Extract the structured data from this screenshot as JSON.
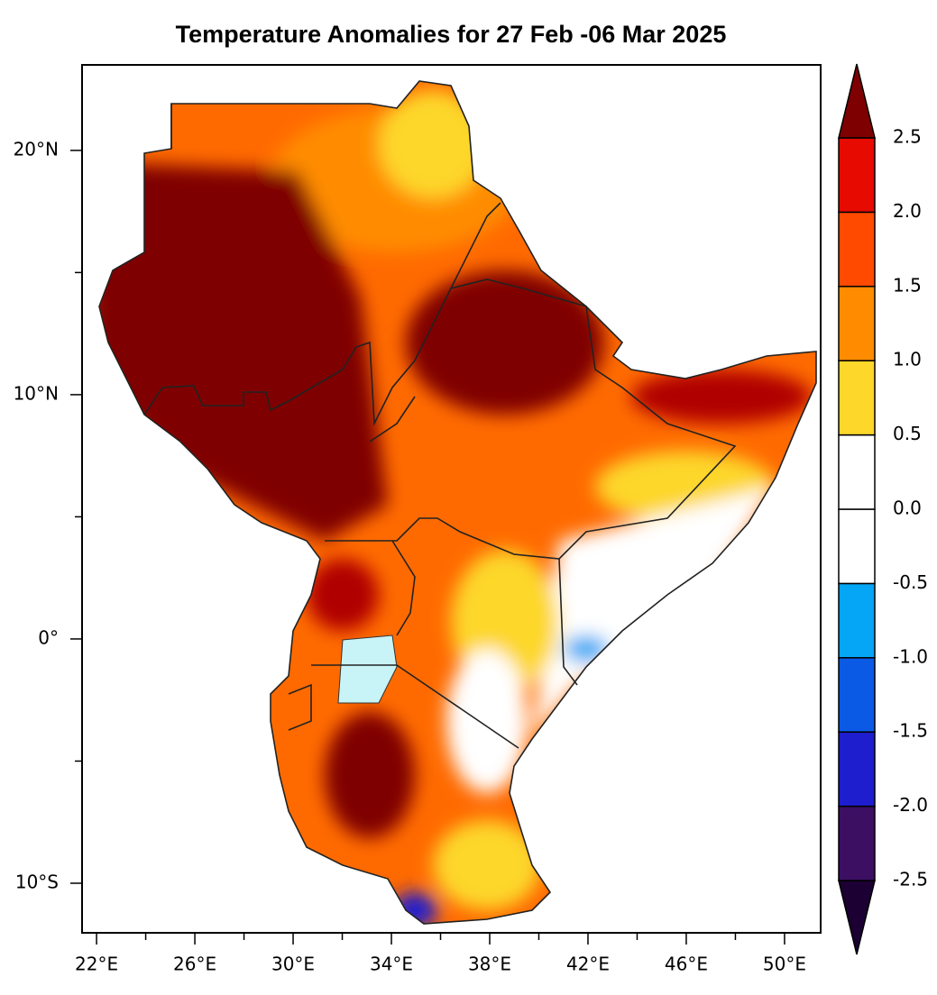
{
  "title": "Temperature Anomalies for 27 Feb -06 Mar 2025",
  "map": {
    "xlim": [
      21.41,
      51.47
    ],
    "ylim": [
      -12.03,
      23.5
    ],
    "xticks": [
      {
        "value": 22,
        "label": "22°E"
      },
      {
        "value": 26,
        "label": "26°E"
      },
      {
        "value": 30,
        "label": "30°E"
      },
      {
        "value": 34,
        "label": "34°E"
      },
      {
        "value": 38,
        "label": "38°E"
      },
      {
        "value": 42,
        "label": "42°E"
      },
      {
        "value": 46,
        "label": "46°E"
      },
      {
        "value": 50,
        "label": "50°E"
      }
    ],
    "minor_xticks": [
      24,
      28,
      32,
      36,
      40,
      44,
      48
    ],
    "yticks": [
      {
        "value": 20,
        "label": "20°N"
      },
      {
        "value": 10,
        "label": "10°N"
      },
      {
        "value": 0,
        "label": "0°"
      },
      {
        "value": -10,
        "label": "10°S"
      }
    ],
    "minor_yticks": [
      15,
      5,
      -5
    ]
  },
  "colorbar": {
    "levels": [
      {
        "value": -2.5,
        "label": "-2.5"
      },
      {
        "value": -2,
        "label": "-2.0"
      },
      -1.5,
      {
        "value": -1,
        "label": "-1.0"
      },
      -0.5,
      {
        "value": 0,
        "label": "0.0"
      },
      0.5,
      {
        "value": 1,
        "label": "1.0"
      },
      1.5,
      {
        "value": 2,
        "label": "2.0"
      },
      2.5
    ],
    "colors": [
      "#1c0033",
      "#3c0f63",
      "#1e1ecf",
      "#0a5ae6",
      "#04a6f5",
      "#ffffff",
      "#ffffff",
      "#fdd72a",
      "#ff8c00",
      "#ff4a00",
      "#e60a00",
      "#7f0000"
    ]
  }
}
